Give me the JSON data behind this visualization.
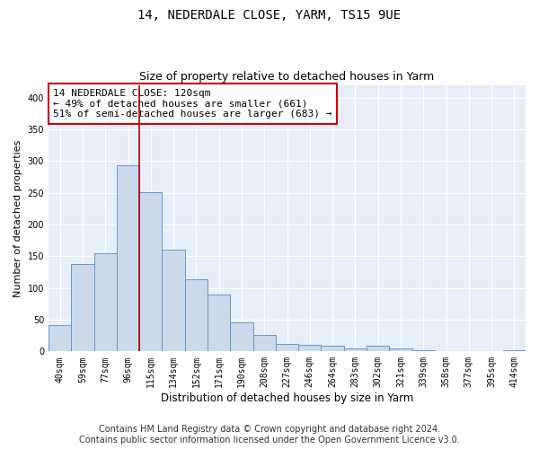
{
  "title1": "14, NEDERDALE CLOSE, YARM, TS15 9UE",
  "title2": "Size of property relative to detached houses in Yarm",
  "xlabel": "Distribution of detached houses by size in Yarm",
  "ylabel": "Number of detached properties",
  "bar_labels": [
    "40sqm",
    "59sqm",
    "77sqm",
    "96sqm",
    "115sqm",
    "134sqm",
    "152sqm",
    "171sqm",
    "190sqm",
    "208sqm",
    "227sqm",
    "246sqm",
    "264sqm",
    "283sqm",
    "302sqm",
    "321sqm",
    "339sqm",
    "358sqm",
    "377sqm",
    "395sqm",
    "414sqm"
  ],
  "bar_values": [
    41,
    138,
    155,
    293,
    251,
    160,
    113,
    90,
    46,
    26,
    12,
    11,
    9,
    5,
    9,
    5,
    2,
    1,
    1,
    1,
    2
  ],
  "bar_color": "#ccd9ea",
  "bar_edgecolor": "#6699cc",
  "vline_x_idx": 3.5,
  "vline_color": "#aa0000",
  "annotation_text": "14 NEDERDALE CLOSE: 120sqm\n← 49% of detached houses are smaller (661)\n51% of semi-detached houses are larger (683) →",
  "annotation_box_edgecolor": "#cc0000",
  "ylim": [
    0,
    420
  ],
  "yticks": [
    0,
    50,
    100,
    150,
    200,
    250,
    300,
    350,
    400
  ],
  "footer_line1": "Contains HM Land Registry data © Crown copyright and database right 2024.",
  "footer_line2": "Contains public sector information licensed under the Open Government Licence v3.0.",
  "plot_bg_color": "#e8eef8",
  "grid_color": "#ffffff",
  "title1_fontsize": 10,
  "title2_fontsize": 9,
  "xlabel_fontsize": 8.5,
  "ylabel_fontsize": 8,
  "tick_fontsize": 7,
  "footer_fontsize": 7,
  "annot_fontsize": 8
}
